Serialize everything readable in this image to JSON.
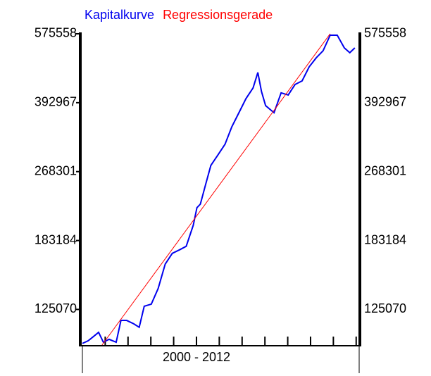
{
  "chart_data": {
    "type": "line",
    "log_y": true,
    "x_label": "2000 - 2012",
    "xlim": [
      2000,
      2012.1
    ],
    "xticks": [
      2001,
      2002,
      2003,
      2004,
      2005,
      2006,
      2007,
      2008,
      2009,
      2010,
      2011,
      2012
    ],
    "ylim": [
      102700,
      580000
    ],
    "yticks": [
      125070,
      183184,
      268301,
      392967,
      575558
    ],
    "series": [
      {
        "name": "Kapitalkurve",
        "color": "#0000ee",
        "x": [
          2000,
          2000.25,
          2000.49,
          2000.71,
          2000.92,
          2001.17,
          2001.48,
          2001.69,
          2001.94,
          2002.25,
          2002.49,
          2002.71,
          2003.02,
          2003.32,
          2003.63,
          2003.94,
          2004.25,
          2004.55,
          2004.86,
          2005.02,
          2005.17,
          2005.42,
          2005.63,
          2005.94,
          2006.25,
          2006.55,
          2006.86,
          2007.17,
          2007.48,
          2007.69,
          2007.85,
          2008.03,
          2008.4,
          2008.71,
          2009.02,
          2009.32,
          2009.63,
          2009.94,
          2010.25,
          2010.55,
          2010.86,
          2011.17,
          2011.48,
          2011.72,
          2011.94
        ],
        "values": [
          103600,
          105100,
          107700,
          110200,
          104300,
          106000,
          104300,
          117700,
          117700,
          115500,
          113300,
          127300,
          128800,
          140400,
          160800,
          170600,
          173900,
          177400,
          199400,
          219700,
          224100,
          252000,
          277600,
          294200,
          312100,
          343900,
          371700,
          402000,
          426400,
          464600,
          417900,
          386600,
          371700,
          415000,
          410100,
          434600,
          443400,
          479300,
          503900,
          523900,
          571000,
          571000,
          532300,
          518200,
          532300
        ]
      },
      {
        "name": "Regressionsgerade",
        "color": "#ff0000",
        "x": [
          2000.86,
          2010.86
        ],
        "values": [
          102700,
          575558
        ]
      }
    ]
  }
}
